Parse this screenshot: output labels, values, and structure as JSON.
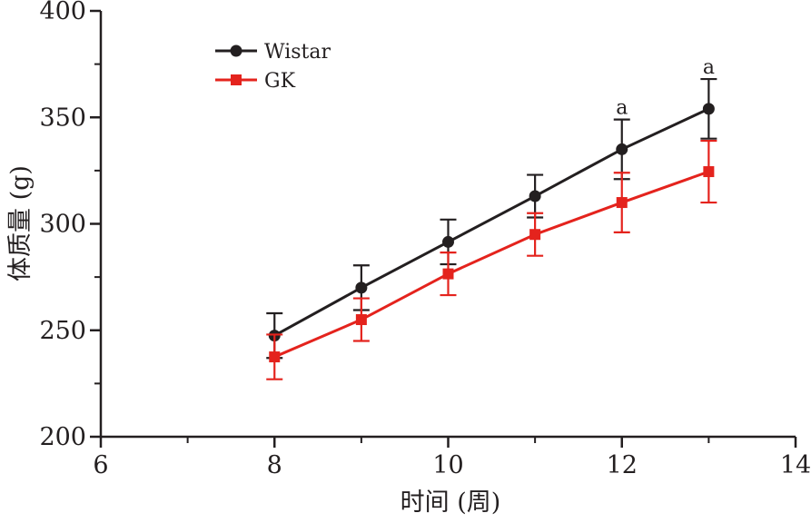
{
  "chart_data": {
    "type": "line",
    "xlabel": "时间 (周)",
    "ylabel": "体质量 (g)",
    "xlim": [
      6,
      14
    ],
    "ylim": [
      200,
      400
    ],
    "x_ticks": [
      "6",
      "8",
      "10",
      "12",
      "14"
    ],
    "y_ticks": [
      "200",
      "250",
      "300",
      "350",
      "400"
    ],
    "grid": false,
    "legend_position": "top-left",
    "series": [
      {
        "name": "Wistar",
        "color": "#231f20",
        "marker": "circle",
        "x": [
          8,
          9,
          10,
          11,
          12,
          13
        ],
        "y": [
          247.5,
          270,
          291.5,
          313,
          335,
          354
        ],
        "error": [
          10.5,
          10.5,
          10.5,
          10,
          14,
          14
        ]
      },
      {
        "name": "GK",
        "color": "#e4231d",
        "marker": "square",
        "x": [
          8,
          9,
          10,
          11,
          12,
          13
        ],
        "y": [
          237.5,
          255,
          276.5,
          295,
          310,
          324.5
        ],
        "error": [
          10.5,
          10,
          10,
          10,
          14,
          14.5
        ]
      }
    ],
    "annotations": [
      {
        "x": 12,
        "y": 349,
        "text": "a"
      },
      {
        "x": 13,
        "y": 368,
        "text": "a"
      }
    ]
  }
}
